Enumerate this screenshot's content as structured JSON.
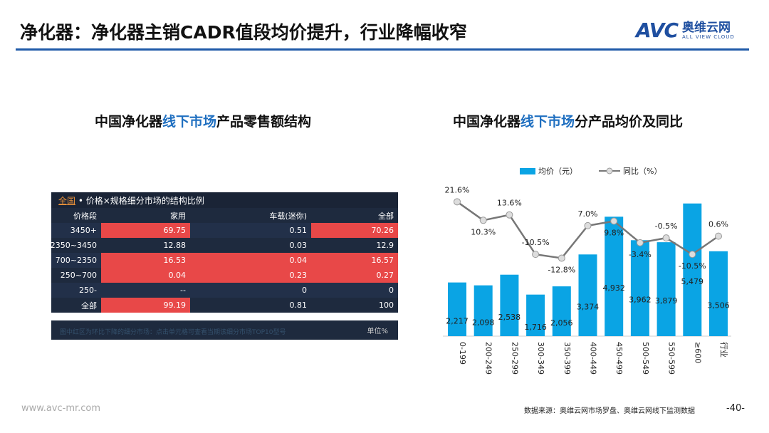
{
  "title": "净化器：净化器主销CADR值段均价提升，行业降幅收窄",
  "logo": {
    "mark": "AVC",
    "cn": "奥维云网",
    "en": "ALL VIEW CLOUD"
  },
  "left_subtitle": {
    "a": "中国净化器",
    "b": "线下市场",
    "c": "产品零售额结构"
  },
  "right_subtitle": {
    "a": "中国净化器",
    "b": "线下市场",
    "c": "分产品均价及同比"
  },
  "table": {
    "header_link": "全国",
    "header_text": " • 价格×规格细分市场的结构比例",
    "columns": [
      "价格段",
      "家用",
      "车载(迷你)",
      "全部"
    ],
    "rows": [
      {
        "cells": [
          "3450+",
          "69.75",
          "0.51",
          "70.26"
        ],
        "red": [
          false,
          true,
          false,
          true
        ]
      },
      {
        "cells": [
          "2350~3450",
          "12.88",
          "0.03",
          "12.9"
        ],
        "red": [
          false,
          false,
          false,
          false
        ]
      },
      {
        "cells": [
          "700~2350",
          "16.53",
          "0.04",
          "16.57"
        ],
        "red": [
          false,
          true,
          true,
          true
        ]
      },
      {
        "cells": [
          "250~700",
          "0.04",
          "0.23",
          "0.27"
        ],
        "red": [
          false,
          true,
          true,
          true
        ]
      },
      {
        "cells": [
          "250-",
          "--",
          "0",
          "0"
        ],
        "red": [
          false,
          false,
          false,
          false
        ]
      },
      {
        "cells": [
          "全部",
          "99.19",
          "0.81",
          "100"
        ],
        "red": [
          false,
          true,
          false,
          false
        ]
      }
    ],
    "note": "图中红区为环比下降的细分市场：点击单元格可查看当期该细分市场TOP10型号",
    "unit": "单位%"
  },
  "chart_data": {
    "type": "bar",
    "title": "中国净化器线下市场分产品均价及同比",
    "categories": [
      "0-199",
      "200-249",
      "250-299",
      "300-349",
      "350-399",
      "400-449",
      "450-499",
      "500-549",
      "550-599",
      "≥600",
      "行业"
    ],
    "series": [
      {
        "name": "均价（元）",
        "type": "bar",
        "color": "#0aa4e4",
        "values": [
          2217,
          2098,
          2538,
          1716,
          2056,
          3374,
          4932,
          3962,
          3879,
          5479,
          3506
        ],
        "labels": [
          "2,217",
          "2,098",
          "2,538",
          "1,716",
          "2,056",
          "3,374",
          "4,932",
          "3,962",
          "3,879",
          "5,479",
          "3,506"
        ]
      },
      {
        "name": "同比（%）",
        "type": "line",
        "color": "#777777",
        "values": [
          21.6,
          10.3,
          13.6,
          -10.5,
          -12.8,
          7.0,
          9.8,
          -3.4,
          -0.5,
          -10.5,
          0.6
        ],
        "labels": [
          "21.6%",
          "10.3%",
          "13.6%",
          "-10.5%",
          "-12.8%",
          "7.0%",
          "9.8%",
          "-3.4%",
          "-0.5%",
          "-10.5%",
          "0.6%"
        ]
      }
    ],
    "legend": "top"
  },
  "footer": {
    "url": "www.avc-mr.com",
    "source": "数据来源：奥维云网市场罗盘、奥维云网线下监测数据",
    "page": "-40-"
  }
}
